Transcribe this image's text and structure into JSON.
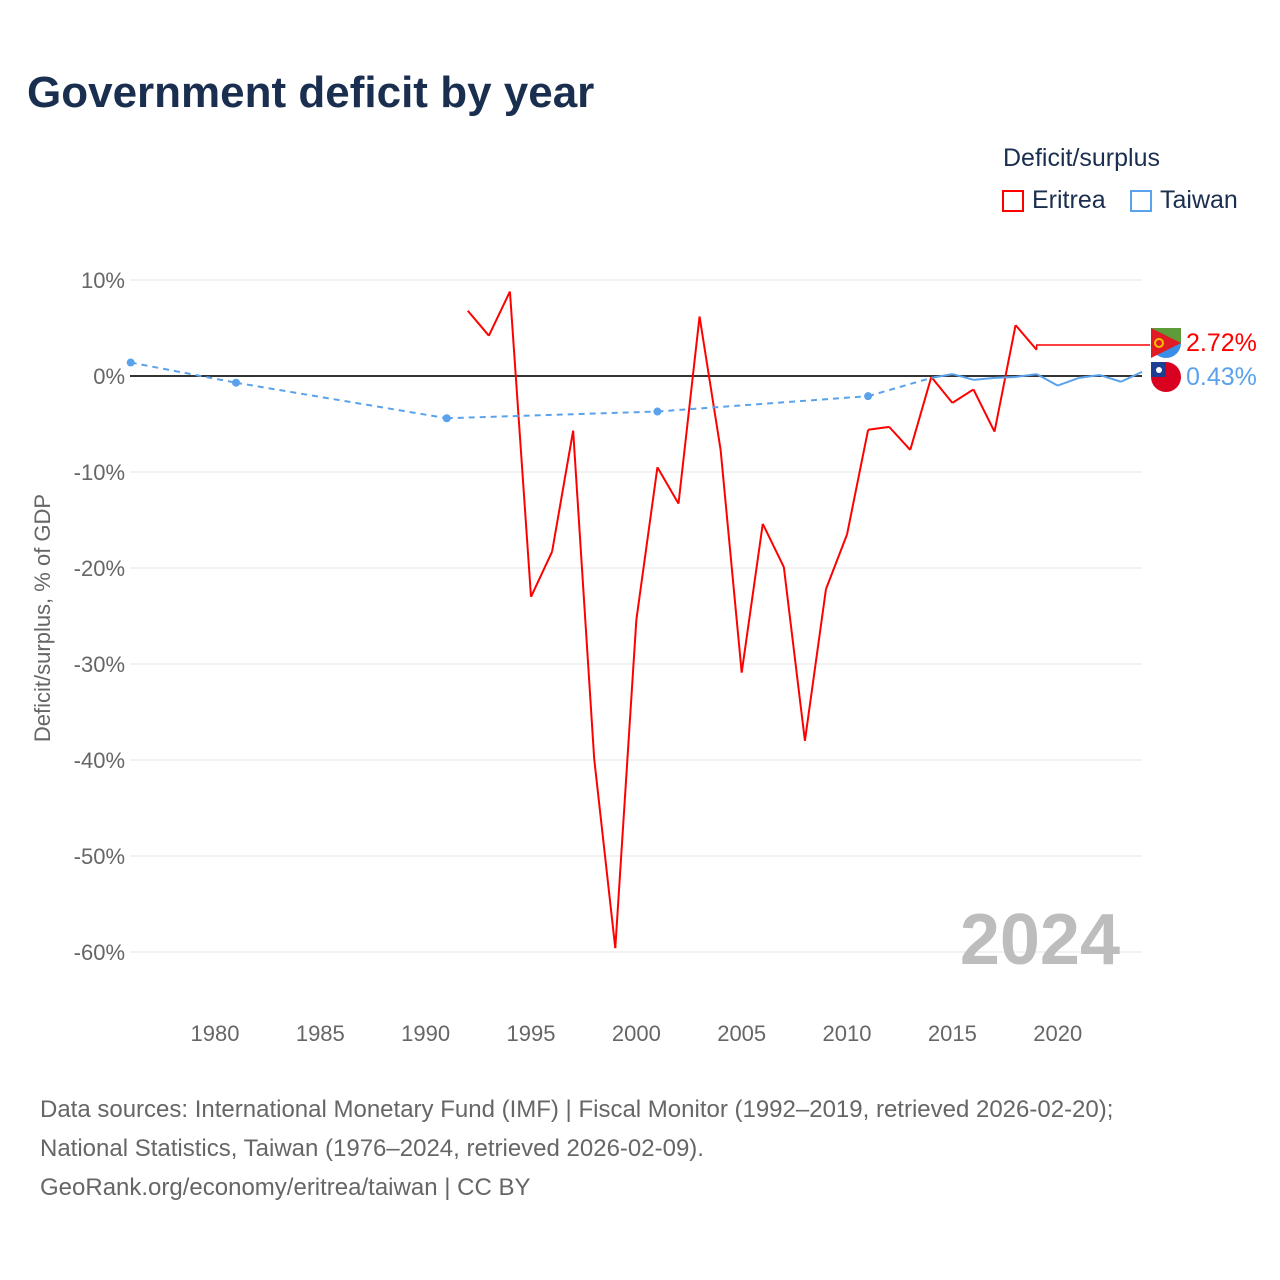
{
  "title": "Government deficit by year",
  "legend": {
    "title": "Deficit/surplus",
    "items": [
      {
        "name": "Eritrea",
        "color": "#ff0000"
      },
      {
        "name": "Taiwan",
        "color": "#5aa2ec"
      }
    ]
  },
  "chart_data": {
    "type": "line",
    "title": "Government deficit by year",
    "xlabel": "",
    "ylabel": "Deficit/surplus, % of GDP",
    "xlim": [
      1976,
      2024
    ],
    "ylim": [
      -60,
      10
    ],
    "x_ticks": [
      "1980",
      "1985",
      "1990",
      "1995",
      "2000",
      "2005",
      "2010",
      "2015",
      "2020"
    ],
    "y_ticks": [
      "10%",
      "0%",
      "-10%",
      "-20%",
      "-30%",
      "-40%",
      "-50%",
      "-60%"
    ],
    "year_label": "2024",
    "series": [
      {
        "name": "Eritrea",
        "color": "#ff0000",
        "end_label": "2.72%",
        "x": [
          1992,
          1993,
          1994,
          1995,
          1996,
          1997,
          1998,
          1999,
          2000,
          2001,
          2002,
          2003,
          2004,
          2005,
          2006,
          2007,
          2008,
          2009,
          2010,
          2011,
          2012,
          2013,
          2014,
          2015,
          2016,
          2017,
          2018,
          2019
        ],
        "y": [
          6.8,
          4.2,
          8.8,
          -23,
          -18.3,
          -5.7,
          -39.9,
          -59.6,
          -25.4,
          -9.5,
          -13.3,
          6.2,
          -7.7,
          -30.9,
          -15.4,
          -19.9,
          -38,
          -22.2,
          -16.5,
          -5.6,
          -5.3,
          -7.7,
          -0.1,
          -2.8,
          -1.4,
          -5.8,
          5.3,
          2.72
        ]
      },
      {
        "name": "Taiwan",
        "color": "#5aa2ec",
        "end_label": "0.43%",
        "x": [
          1976,
          1981,
          1991,
          2001,
          2011,
          2014,
          2015,
          2016,
          2017,
          2018,
          2019,
          2020,
          2021,
          2022,
          2023,
          2024
        ],
        "y": [
          1.4,
          -0.7,
          -4.4,
          -3.7,
          -2.1,
          -0.2,
          0.2,
          -0.4,
          -0.2,
          -0.1,
          0.2,
          -1.0,
          -0.2,
          0.1,
          -0.6,
          0.43
        ]
      }
    ]
  },
  "footer": {
    "line1": "Data sources: International Monetary Fund (IMF) | Fiscal Monitor (1992–2019, retrieved 2026-02-20);",
    "line2": "National Statistics, Taiwan (1976–2024, retrieved 2026-02-09).",
    "line3": "GeoRank.org/economy/eritrea/taiwan | CC BY"
  }
}
